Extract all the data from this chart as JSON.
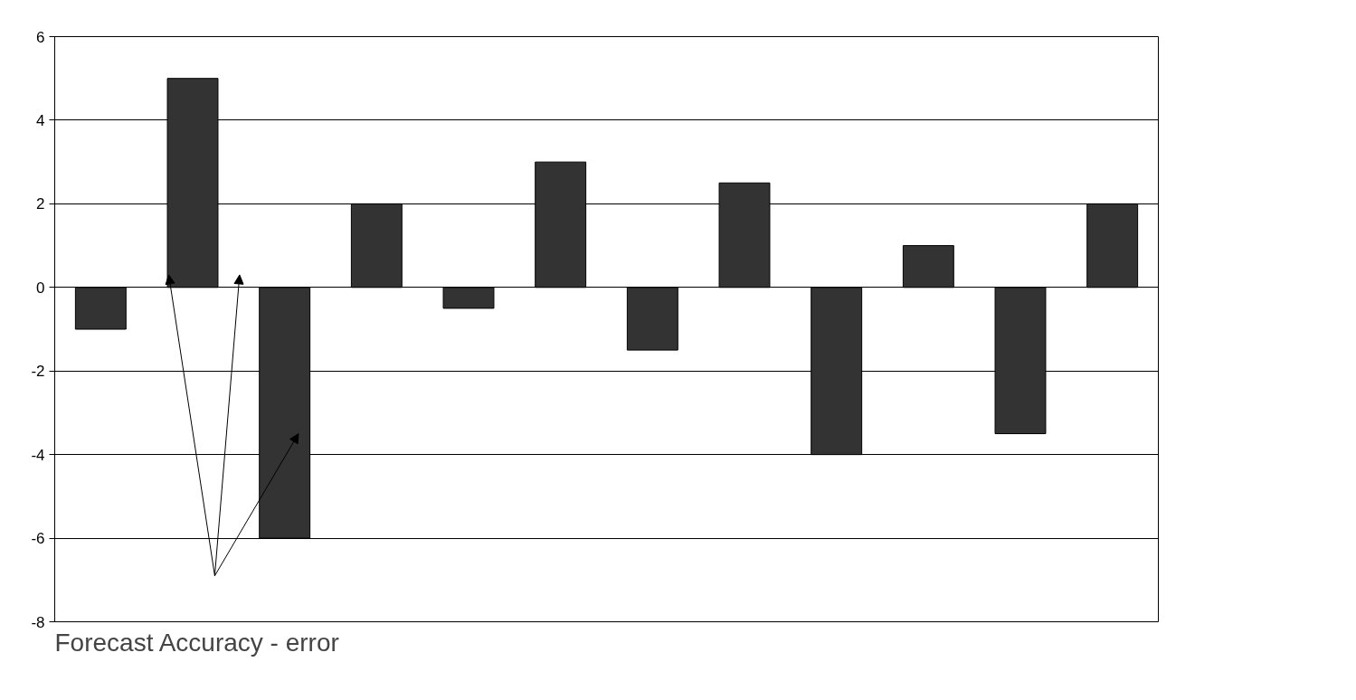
{
  "chart_data": {
    "type": "bar",
    "title": "Forecast Accuracy - error",
    "categories": [
      null,
      null,
      null,
      null,
      null,
      null,
      null,
      null,
      null,
      null,
      null,
      null
    ],
    "series": [
      {
        "color": "#333333",
        "values": [
          -1,
          5,
          -6,
          2,
          -0.5,
          3,
          -1.5,
          2.5,
          -4,
          1,
          -3.5,
          2
        ]
      }
    ],
    "ylim": [
      -8,
      6
    ],
    "yticks": [
      -8,
      -6,
      -4,
      -2,
      0,
      2,
      4,
      6
    ],
    "grid": "y",
    "tick_labels": "y"
  }
}
